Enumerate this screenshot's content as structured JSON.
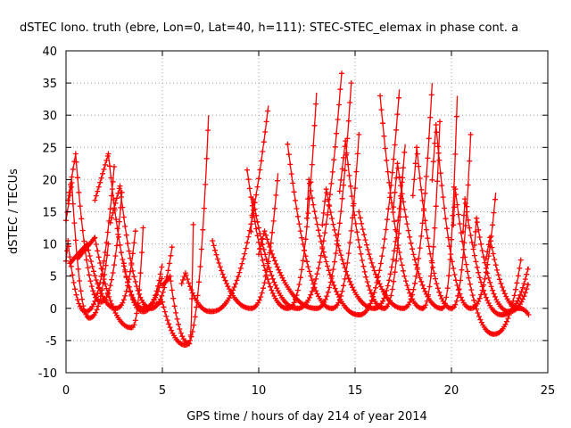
{
  "chart_data": {
    "type": "scatter",
    "title": "dSTEC Iono. truth (ebre, Lon=0, Lat=40, h=111): STEC-STEC_elemax in phase cont. a",
    "xlabel": "GPS time / hours of day 214 of year 2014",
    "ylabel": "dSTEC  / TECUs",
    "xlim": [
      0,
      25
    ],
    "ylim": [
      -10,
      40
    ],
    "x_ticks": [
      0,
      5,
      10,
      15,
      20,
      25
    ],
    "y_ticks": [
      -10,
      -5,
      0,
      5,
      10,
      15,
      20,
      25,
      30,
      35,
      40
    ],
    "x_tick_labels": [
      "0",
      "5",
      "10",
      "15",
      "20",
      "25"
    ],
    "y_tick_labels": [
      "-10",
      "-5",
      "0",
      "5",
      "10",
      "15",
      "20",
      "25",
      "30",
      "35",
      "40"
    ],
    "grid": true,
    "marker": "plus",
    "series_color": "#ff0000",
    "arcs": [
      {
        "start": 0.0,
        "peak_x": 0.3,
        "peak_y": 19.5,
        "min_x": 1.2,
        "min_y": -1.5,
        "end": 2.2,
        "end_y": 10.0
      },
      {
        "start": 0.0,
        "peak_x": 0.1,
        "peak_y": 10.5,
        "min_x": 1.0,
        "min_y": -0.5,
        "end": 2.5,
        "end_y": 22.0
      },
      {
        "start": 0.1,
        "peak_x": 0.5,
        "peak_y": 24.0,
        "min_x": 1.8,
        "min_y": 1.0,
        "end": 2.9,
        "end_y": 18.0
      },
      {
        "start": 0.2,
        "peak_x": 1.1,
        "peak_y": 10.0,
        "min_x": 2.6,
        "min_y": 0.0,
        "end": 3.6,
        "end_y": 12.0
      },
      {
        "start": 0.6,
        "peak_x": 1.5,
        "peak_y": 11.0,
        "min_x": 3.4,
        "min_y": -3.0,
        "end": 4.0,
        "end_y": 12.5
      },
      {
        "start": 1.5,
        "peak_x": 2.2,
        "peak_y": 24.0,
        "min_x": 4.0,
        "min_y": 0.0,
        "end": 5.0,
        "end_y": 5.0
      },
      {
        "start": 2.3,
        "peak_x": 2.8,
        "peak_y": 19.0,
        "min_x": 4.4,
        "min_y": 0.0,
        "end": 5.5,
        "end_y": 9.5
      },
      {
        "start": 3.0,
        "peak_x": 3.0,
        "peak_y": 7.0,
        "min_x": 4.0,
        "min_y": -0.5,
        "end": 5.0,
        "end_y": 7.0
      },
      {
        "start": 4.7,
        "peak_x": 5.0,
        "peak_y": 1.0,
        "min_x": 6.2,
        "min_y": -5.7,
        "end": 7.4,
        "end_y": 30.0
      },
      {
        "start": 5.0,
        "peak_x": 5.4,
        "peak_y": 5.0,
        "min_x": 6.4,
        "min_y": -5.5,
        "end": 6.6,
        "end_y": 13.0
      },
      {
        "start": 6.0,
        "peak_x": 6.2,
        "peak_y": 5.5,
        "min_x": 7.5,
        "min_y": -0.5,
        "end": 10.5,
        "end_y": 31.5
      },
      {
        "start": 7.6,
        "peak_x": 7.6,
        "peak_y": 10.5,
        "min_x": 9.6,
        "min_y": 0.0,
        "end": 11.0,
        "end_y": 21.0
      },
      {
        "start": 9.4,
        "peak_x": 9.4,
        "peak_y": 21.5,
        "min_x": 11.5,
        "min_y": 0.0,
        "end": 13.0,
        "end_y": 33.5
      },
      {
        "start": 9.6,
        "peak_x": 9.7,
        "peak_y": 17.0,
        "min_x": 12.0,
        "min_y": 0.0,
        "end": 14.3,
        "end_y": 36.5
      },
      {
        "start": 10.0,
        "peak_x": 10.3,
        "peak_y": 12.0,
        "min_x": 13.0,
        "min_y": 0.0,
        "end": 14.8,
        "end_y": 35.0
      },
      {
        "start": 11.5,
        "peak_x": 11.5,
        "peak_y": 25.5,
        "min_x": 13.8,
        "min_y": 0.0,
        "end": 15.2,
        "end_y": 27.0
      },
      {
        "start": 12.5,
        "peak_x": 12.6,
        "peak_y": 20.0,
        "min_x": 15.2,
        "min_y": -1.0,
        "end": 17.3,
        "end_y": 34.0
      },
      {
        "start": 13.3,
        "peak_x": 13.5,
        "peak_y": 18.5,
        "min_x": 16.0,
        "min_y": 0.0,
        "end": 17.6,
        "end_y": 25.5
      },
      {
        "start": 14.2,
        "peak_x": 14.5,
        "peak_y": 26.0,
        "min_x": 16.5,
        "min_y": 0.0,
        "end": 17.5,
        "end_y": 22.0
      },
      {
        "start": 15.2,
        "peak_x": 15.2,
        "peak_y": 15.0,
        "min_x": 17.5,
        "min_y": 0.0,
        "end": 19.0,
        "end_y": 35.0
      },
      {
        "start": 16.3,
        "peak_x": 16.3,
        "peak_y": 33.0,
        "min_x": 18.5,
        "min_y": 0.0,
        "end": 19.4,
        "end_y": 29.0
      },
      {
        "start": 17.0,
        "peak_x": 17.2,
        "peak_y": 22.5,
        "min_x": 19.5,
        "min_y": 0.0,
        "end": 20.3,
        "end_y": 33.0
      },
      {
        "start": 18.0,
        "peak_x": 18.2,
        "peak_y": 25.0,
        "min_x": 20.0,
        "min_y": 0.0,
        "end": 21.0,
        "end_y": 27.0
      },
      {
        "start": 19.0,
        "peak_x": 19.2,
        "peak_y": 28.5,
        "min_x": 21.0,
        "min_y": 0.0,
        "end": 22.3,
        "end_y": 18.0
      },
      {
        "start": 20.1,
        "peak_x": 20.2,
        "peak_y": 18.5,
        "min_x": 22.2,
        "min_y": -4.0,
        "end": 23.6,
        "end_y": 7.5
      },
      {
        "start": 20.6,
        "peak_x": 20.7,
        "peak_y": 17.0,
        "min_x": 22.6,
        "min_y": -1.0,
        "end": 24.0,
        "end_y": 6.5
      },
      {
        "start": 21.2,
        "peak_x": 21.3,
        "peak_y": 14.0,
        "min_x": 23.0,
        "min_y": -0.5,
        "end": 24.0,
        "end_y": 4.0
      },
      {
        "start": 21.8,
        "peak_x": 22.0,
        "peak_y": 11.0,
        "min_x": 23.5,
        "min_y": 0.0,
        "end": 24.0,
        "end_y": -1.0
      }
    ]
  }
}
